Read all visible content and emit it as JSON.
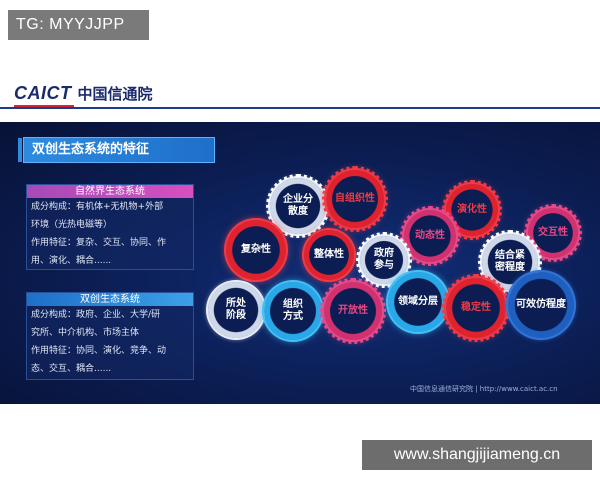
{
  "watermark_top": "TG: MYYJJPP",
  "watermark_bottom": "www.shangjijiameng.cn",
  "header": {
    "logo_en": "CAICT",
    "logo_cn": "中国信通院"
  },
  "slide": {
    "title": "双创生态系统的特征",
    "box1": {
      "heading": "自然界生态系统",
      "lines": [
        "成分构成：有机体+无机物+外部",
        "环境（光热电磁等）",
        "作用特征：复杂、交互、协同、作",
        "用、演化、耦合......"
      ]
    },
    "box2": {
      "heading": "双创生态系统",
      "lines": [
        "成分构成：政府、企业、大学/研",
        "究所、中介机构、市场主体",
        "作用特征：协同、演化、竞争、动",
        "态、交互、耦合......"
      ]
    },
    "gears": [
      {
        "label": "企业分\n散度",
        "color": "white"
      },
      {
        "label": "自组织性",
        "color": "red"
      },
      {
        "label": "演化性",
        "color": "red"
      },
      {
        "label": "交互性",
        "color": "pink"
      },
      {
        "label": "动态性",
        "color": "pink"
      },
      {
        "label": "复杂性",
        "color": "red"
      },
      {
        "label": "整体性",
        "color": "red"
      },
      {
        "label": "政府\n参与",
        "color": "white"
      },
      {
        "label": "结合紧\n密程度",
        "color": "white"
      },
      {
        "label": "所处\n阶段",
        "color": "white"
      },
      {
        "label": "组织\n方式",
        "color": "cyan"
      },
      {
        "label": "开放性",
        "color": "pink"
      },
      {
        "label": "领域分层",
        "color": "cyan"
      },
      {
        "label": "稳定性",
        "color": "red"
      },
      {
        "label": "可效仿程度",
        "color": "blue"
      }
    ],
    "footer": "中国信息通信研究院  |  http://www.caict.ac.cn"
  }
}
